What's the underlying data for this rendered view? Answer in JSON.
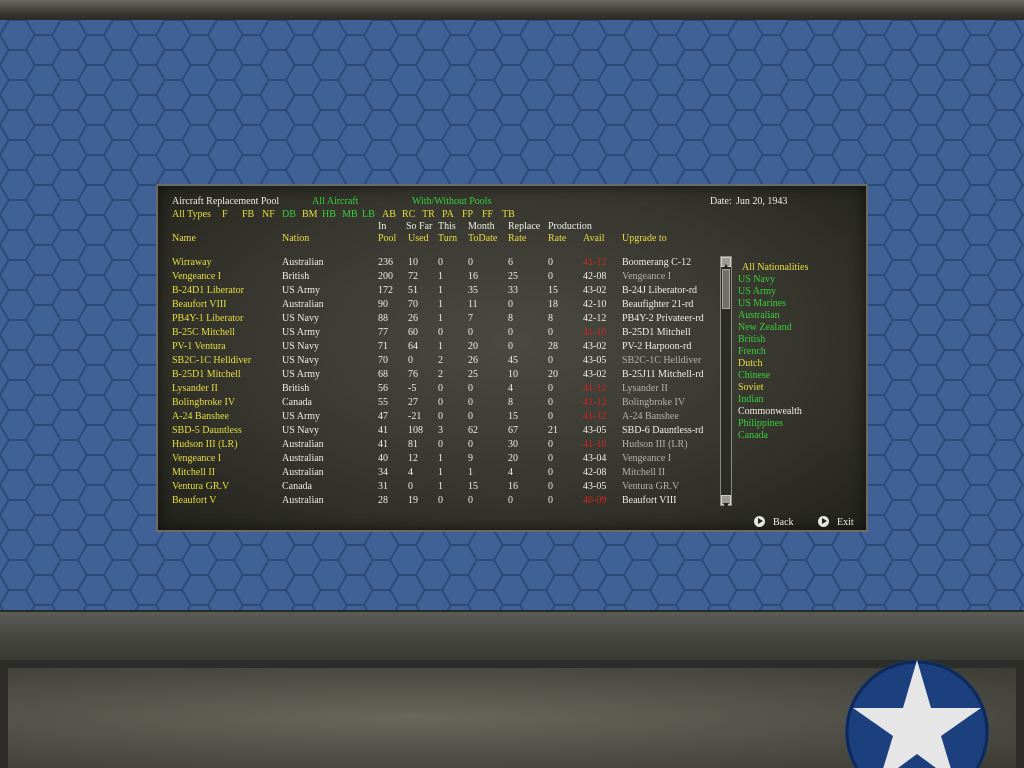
{
  "title": "Aircraft Replacement Pool",
  "filter_all_aircraft": "All Aircraft",
  "filter_pools": "With/Without Pools",
  "date_label": "Date:",
  "date_value": "Jun 20, 1943",
  "type_filters": [
    "All Types",
    "F",
    "FB",
    "NF",
    "DB",
    "BM",
    "HB",
    "MB",
    "LB",
    "AB",
    "RC",
    "TR",
    "PA",
    "FP",
    "FF",
    "TB"
  ],
  "column_headers": {
    "in_top": "In",
    "in_bottom": "Pool",
    "sofar_top": "So Far",
    "sofar_bottom": "Used",
    "this_top": "This",
    "this_bottom": "Turn",
    "month_top": "Month",
    "month_bottom": "ToDate",
    "replace_top": "Replace",
    "replace_bottom": "Rate",
    "prod_top": "Production",
    "prod_bottom": "Rate",
    "name": "Name",
    "nation": "Nation",
    "avail": "Avail",
    "upgrade": "Upgrade to"
  },
  "rows": [
    {
      "name": "Wirraway",
      "nation": "Australian",
      "pool": "236",
      "used": "10",
      "turn": "0",
      "month": "0",
      "replace": "6",
      "prod": "0",
      "avail": "41-12",
      "upgrade": "Boomerang C-12",
      "avail_red": true,
      "upgrade_grey": false
    },
    {
      "name": "Vengeance I",
      "nation": "British",
      "pool": "200",
      "used": "72",
      "turn": "1",
      "month": "16",
      "replace": "25",
      "prod": "0",
      "avail": "42-08",
      "upgrade": "Vengeance I",
      "avail_red": false,
      "upgrade_grey": true
    },
    {
      "name": "B-24D1 Liberator",
      "nation": "US Army",
      "pool": "172",
      "used": "51",
      "turn": "1",
      "month": "35",
      "replace": "33",
      "prod": "15",
      "avail": "43-02",
      "upgrade": "B-24J Liberator-rd",
      "avail_red": false,
      "upgrade_grey": false
    },
    {
      "name": "Beaufort VIII",
      "nation": "Australian",
      "pool": "90",
      "used": "70",
      "turn": "1",
      "month": "11",
      "replace": "0",
      "prod": "18",
      "avail": "42-10",
      "upgrade": "Beaufighter 21-rd",
      "avail_red": false,
      "upgrade_grey": false
    },
    {
      "name": "PB4Y-1 Liberator",
      "nation": "US Navy",
      "pool": "88",
      "used": "26",
      "turn": "1",
      "month": "7",
      "replace": "8",
      "prod": "8",
      "avail": "42-12",
      "upgrade": "PB4Y-2 Privateer-rd",
      "avail_red": false,
      "upgrade_grey": false
    },
    {
      "name": "B-25C Mitchell",
      "nation": "US Army",
      "pool": "77",
      "used": "60",
      "turn": "0",
      "month": "0",
      "replace": "0",
      "prod": "0",
      "avail": "41-10",
      "upgrade": "B-25D1 Mitchell",
      "avail_red": true,
      "upgrade_grey": false
    },
    {
      "name": "PV-1 Ventura",
      "nation": "US Navy",
      "pool": "71",
      "used": "64",
      "turn": "1",
      "month": "20",
      "replace": "0",
      "prod": "28",
      "avail": "43-02",
      "upgrade": "PV-2 Harpoon-rd",
      "avail_red": false,
      "upgrade_grey": false
    },
    {
      "name": "SB2C-1C Helldiver",
      "nation": "US Navy",
      "pool": "70",
      "used": "0",
      "turn": "2",
      "month": "26",
      "replace": "45",
      "prod": "0",
      "avail": "43-05",
      "upgrade": "SB2C-1C Helldiver",
      "avail_red": false,
      "upgrade_grey": true
    },
    {
      "name": "B-25D1 Mitchell",
      "nation": "US Army",
      "pool": "68",
      "used": "76",
      "turn": "2",
      "month": "25",
      "replace": "10",
      "prod": "20",
      "avail": "43-02",
      "upgrade": "B-25J11 Mitchell-rd",
      "avail_red": false,
      "upgrade_grey": false
    },
    {
      "name": "Lysander II",
      "nation": "British",
      "pool": "56",
      "used": "-5",
      "turn": "0",
      "month": "0",
      "replace": "4",
      "prod": "0",
      "avail": "41-12",
      "upgrade": "Lysander II",
      "avail_red": true,
      "upgrade_grey": true
    },
    {
      "name": "Bolingbroke IV",
      "nation": "Canada",
      "pool": "55",
      "used": "27",
      "turn": "0",
      "month": "0",
      "replace": "8",
      "prod": "0",
      "avail": "41-12",
      "upgrade": "Bolingbroke IV",
      "avail_red": true,
      "upgrade_grey": true
    },
    {
      "name": "A-24 Banshee",
      "nation": "US Army",
      "pool": "47",
      "used": "-21",
      "turn": "0",
      "month": "0",
      "replace": "15",
      "prod": "0",
      "avail": "41-12",
      "upgrade": "A-24 Banshee",
      "avail_red": true,
      "upgrade_grey": true
    },
    {
      "name": "SBD-5 Dauntless",
      "nation": "US Navy",
      "pool": "41",
      "used": "108",
      "turn": "3",
      "month": "62",
      "replace": "67",
      "prod": "21",
      "avail": "43-05",
      "upgrade": "SBD-6 Dauntless-rd",
      "avail_red": false,
      "upgrade_grey": false
    },
    {
      "name": "Hudson III (LR)",
      "nation": "Australian",
      "pool": "41",
      "used": "81",
      "turn": "0",
      "month": "0",
      "replace": "30",
      "prod": "0",
      "avail": "41-10",
      "upgrade": "Hudson III (LR)",
      "avail_red": true,
      "upgrade_grey": true
    },
    {
      "name": "Vengeance I",
      "nation": "Australian",
      "pool": "40",
      "used": "12",
      "turn": "1",
      "month": "9",
      "replace": "20",
      "prod": "0",
      "avail": "43-04",
      "upgrade": "Vengeance I",
      "avail_red": false,
      "upgrade_grey": true
    },
    {
      "name": "Mitchell II",
      "nation": "Australian",
      "pool": "34",
      "used": "4",
      "turn": "1",
      "month": "1",
      "replace": "4",
      "prod": "0",
      "avail": "42-08",
      "upgrade": "Mitchell II",
      "avail_red": false,
      "upgrade_grey": true
    },
    {
      "name": "Ventura GR.V",
      "nation": "Canada",
      "pool": "31",
      "used": "0",
      "turn": "1",
      "month": "15",
      "replace": "16",
      "prod": "0",
      "avail": "43-05",
      "upgrade": "Ventura GR.V",
      "avail_red": false,
      "upgrade_grey": true
    },
    {
      "name": "Beaufort V",
      "nation": "Australian",
      "pool": "28",
      "used": "19",
      "turn": "0",
      "month": "0",
      "replace": "0",
      "prod": "0",
      "avail": "40-09",
      "upgrade": "Beaufort VIII",
      "avail_red": true,
      "upgrade_grey": false
    }
  ],
  "nationalities": [
    "All Nationalities",
    "US Navy",
    "US Army",
    "US Marines",
    "Australian",
    "New Zealand",
    "British",
    "French",
    "Dutch",
    "Chinese",
    "Soviet",
    "Indian",
    "Commonwealth",
    "Philippines",
    "Canada"
  ],
  "back_label": "Back",
  "exit_label": "Exit",
  "colors": {
    "yellow": "#e8df3f",
    "green": "#37d03a",
    "red": "#d5221f",
    "white": "#f0efe6",
    "grey": "#b5b3a8",
    "background_blue": "#3f6196"
  }
}
